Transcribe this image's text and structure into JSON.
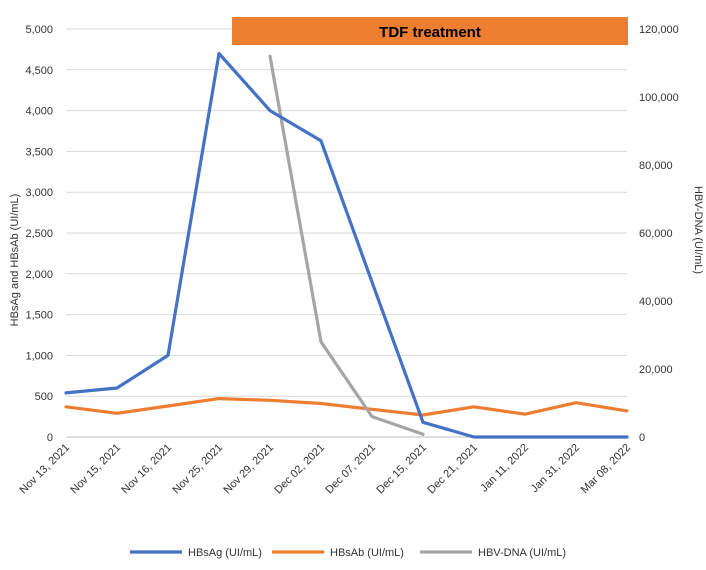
{
  "chart_data": {
    "type": "line",
    "categories": [
      "Nov 13, 2021",
      "Nov 15, 2021",
      "Nov 16, 2021",
      "Nov 25, 2021",
      "Nov 29, 2021",
      "Dec 02, 2021",
      "Dec 07, 2021",
      "Dec 15, 2021",
      "Dec 21, 2021",
      "Jan 11, 2022",
      "Jan 31, 2022",
      "Mar 08, 2022"
    ],
    "y_left": {
      "label": "HBsAg and HBsAb (UI/mL)",
      "ylim": [
        0,
        5000
      ],
      "ticks": [
        "0",
        "500",
        "1,000",
        "1,500",
        "2,000",
        "2,500",
        "3,000",
        "3,500",
        "4,000",
        "4,500",
        "5,000"
      ]
    },
    "y_right": {
      "label": "HBV-DNA (UI/mL)",
      "ylim": [
        0,
        120000
      ],
      "ticks": [
        "0",
        "20,000",
        "40,000",
        "60,000",
        "80,000",
        "100,000",
        "120,000"
      ]
    },
    "grid": true,
    "legend_position": "bottom",
    "annotation": {
      "text": "TDF treatment",
      "color": "#ED7D31"
    },
    "series": [
      {
        "name": "HBsAg (UI/mL)",
        "axis": "left",
        "color": "#4472C4",
        "values": [
          540,
          600,
          1000,
          4700,
          4000,
          3630,
          1900,
          180,
          0,
          0,
          0,
          0
        ]
      },
      {
        "name": "HBsAb (UI/mL)",
        "axis": "left",
        "color": "#ED7D31",
        "values": [
          370,
          290,
          380,
          470,
          450,
          410,
          340,
          270,
          370,
          280,
          420,
          320
        ]
      },
      {
        "name": "HBV-DNA (UI/mL)",
        "axis": "right",
        "color": "#A5A5A5",
        "values": [
          null,
          null,
          null,
          null,
          112000,
          28000,
          6000,
          800,
          null,
          null,
          null,
          null
        ]
      }
    ]
  }
}
